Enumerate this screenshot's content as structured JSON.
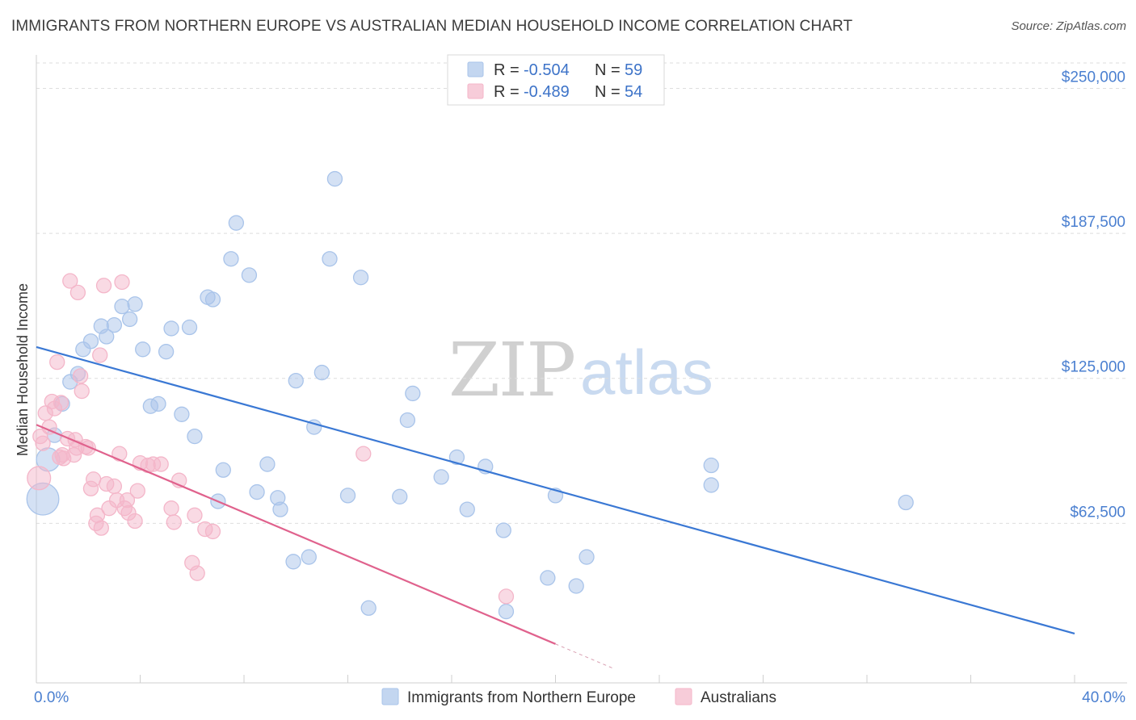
{
  "header": {
    "title": "IMMIGRANTS FROM NORTHERN EUROPE VS AUSTRALIAN MEDIAN HOUSEHOLD INCOME CORRELATION CHART",
    "source": "Source: ZipAtlas.com"
  },
  "watermark": {
    "zip": "ZIP",
    "atlas": "atlas"
  },
  "legend_top": {
    "rows": [
      {
        "r_label": "R =",
        "r_value": "-0.504",
        "n_label": "N =",
        "n_value": "59",
        "color": "#a9c4ea"
      },
      {
        "r_label": "R =",
        "r_value": "-0.489",
        "n_label": "N =",
        "n_value": "54",
        "color": "#f4b6c9"
      }
    ]
  },
  "legend_bottom": {
    "items": [
      {
        "label": "Immigrants from Northern Europe",
        "color": "#a9c4ea"
      },
      {
        "label": "Australians",
        "color": "#f4b6c9"
      }
    ]
  },
  "chart_data": {
    "type": "scatter",
    "title": "IMMIGRANTS FROM NORTHERN EUROPE VS AUSTRALIAN MEDIAN HOUSEHOLD INCOME CORRELATION CHART",
    "xlabel": "",
    "ylabel": "Median Household Income",
    "xlim": [
      0,
      40
    ],
    "ylim": [
      0,
      262000
    ],
    "x_tick_labels": [
      "0.0%",
      "40.0%"
    ],
    "y_ticks": [
      62500,
      125000,
      187500,
      250000
    ],
    "y_tick_labels": [
      "$62,500",
      "$125,000",
      "$187,500",
      "$250,000"
    ],
    "grid": true,
    "series": [
      {
        "name": "Immigrants from Northern Europe",
        "color": "#3a78d4",
        "fill": "#a9c4ea",
        "trend": {
          "x": [
            0,
            40
          ],
          "y": [
            138500,
            15000
          ]
        },
        "points": [
          [
            0.25,
            73000,
            2.2
          ],
          [
            0.45,
            90000,
            1.6
          ],
          [
            0.7,
            100500,
            1
          ],
          [
            1.0,
            114000,
            1
          ],
          [
            1.3,
            123500,
            1
          ],
          [
            1.6,
            127000,
            1
          ],
          [
            1.8,
            137500,
            1
          ],
          [
            2.1,
            141000,
            1
          ],
          [
            2.5,
            147500,
            1
          ],
          [
            2.7,
            143000,
            1
          ],
          [
            3.0,
            148000,
            1
          ],
          [
            3.3,
            156000,
            1
          ],
          [
            3.6,
            150500,
            1
          ],
          [
            3.8,
            157000,
            1
          ],
          [
            4.1,
            137500,
            1
          ],
          [
            4.4,
            113000,
            1
          ],
          [
            4.7,
            114000,
            1
          ],
          [
            5.0,
            136500,
            1
          ],
          [
            5.2,
            146500,
            1
          ],
          [
            5.6,
            109500,
            1
          ],
          [
            5.9,
            147000,
            1
          ],
          [
            6.1,
            100000,
            1
          ],
          [
            6.6,
            160000,
            1
          ],
          [
            6.8,
            159000,
            1
          ],
          [
            7.0,
            72000,
            1
          ],
          [
            7.2,
            85500,
            1
          ],
          [
            7.5,
            176500,
            1
          ],
          [
            7.7,
            192000,
            1
          ],
          [
            8.2,
            169500,
            1
          ],
          [
            8.9,
            88000,
            1
          ],
          [
            8.5,
            76000,
            1
          ],
          [
            9.3,
            73500,
            1
          ],
          [
            9.4,
            68500,
            1
          ],
          [
            9.9,
            46000,
            1
          ],
          [
            10.0,
            124000,
            1
          ],
          [
            10.5,
            48000,
            1
          ],
          [
            10.7,
            104000,
            1
          ],
          [
            11.0,
            127500,
            1
          ],
          [
            11.3,
            176500,
            1
          ],
          [
            11.5,
            211000,
            1
          ],
          [
            12.0,
            74500,
            1
          ],
          [
            12.5,
            168500,
            1
          ],
          [
            12.8,
            26000,
            1
          ],
          [
            14.0,
            74000,
            1
          ],
          [
            14.5,
            118500,
            1
          ],
          [
            14.3,
            107000,
            1
          ],
          [
            15.6,
            82500,
            1
          ],
          [
            16.2,
            91000,
            1
          ],
          [
            16.6,
            68500,
            1
          ],
          [
            17.3,
            87000,
            1
          ],
          [
            18.0,
            59500,
            1
          ],
          [
            18.1,
            24500,
            1
          ],
          [
            19.7,
            39000,
            1
          ],
          [
            20.0,
            74500,
            1
          ],
          [
            20.8,
            35500,
            1
          ],
          [
            21.2,
            48000,
            1
          ],
          [
            26.0,
            87500,
            1
          ],
          [
            26.0,
            79000,
            1
          ],
          [
            33.5,
            71500,
            1
          ]
        ]
      },
      {
        "name": "Australians",
        "color": "#e0628d",
        "fill": "#f4b6c9",
        "trend": {
          "x": [
            0,
            20
          ],
          "y": [
            105000,
            10500
          ]
        },
        "points": [
          [
            0.1,
            82000,
            1.6
          ],
          [
            0.25,
            97000,
            1
          ],
          [
            0.35,
            110000,
            1
          ],
          [
            0.5,
            104000,
            1
          ],
          [
            0.6,
            115000,
            1
          ],
          [
            0.7,
            112000,
            1
          ],
          [
            0.8,
            132000,
            1
          ],
          [
            0.9,
            91000,
            1
          ],
          [
            0.95,
            114500,
            1
          ],
          [
            1.0,
            92000,
            1
          ],
          [
            1.2,
            99000,
            1
          ],
          [
            1.3,
            167000,
            1
          ],
          [
            1.45,
            92000,
            1
          ],
          [
            1.5,
            98500,
            1
          ],
          [
            1.6,
            162000,
            1
          ],
          [
            1.7,
            126000,
            1
          ],
          [
            1.75,
            119500,
            1
          ],
          [
            1.9,
            95500,
            1
          ],
          [
            2.0,
            95000,
            1
          ],
          [
            2.1,
            77500,
            1
          ],
          [
            2.2,
            81500,
            1
          ],
          [
            2.3,
            62500,
            1
          ],
          [
            2.35,
            66000,
            1
          ],
          [
            2.5,
            60500,
            1
          ],
          [
            2.45,
            135000,
            1
          ],
          [
            2.6,
            165000,
            1
          ],
          [
            2.7,
            79500,
            1
          ],
          [
            2.8,
            69000,
            1
          ],
          [
            3.0,
            78500,
            1
          ],
          [
            3.1,
            72500,
            1
          ],
          [
            3.2,
            92500,
            1
          ],
          [
            3.3,
            166500,
            1
          ],
          [
            3.4,
            69000,
            1
          ],
          [
            3.5,
            72500,
            1
          ],
          [
            3.55,
            67000,
            1
          ],
          [
            3.8,
            63500,
            1
          ],
          [
            3.9,
            76500,
            1
          ],
          [
            4.0,
            88500,
            1
          ],
          [
            4.3,
            87500,
            1
          ],
          [
            4.5,
            88000,
            1
          ],
          [
            4.8,
            88000,
            1
          ],
          [
            5.2,
            69000,
            1
          ],
          [
            5.3,
            63000,
            1
          ],
          [
            5.5,
            81000,
            1
          ],
          [
            6.0,
            45500,
            1
          ],
          [
            6.1,
            66000,
            1
          ],
          [
            6.2,
            41000,
            1
          ],
          [
            6.5,
            60000,
            1
          ],
          [
            6.8,
            59000,
            1
          ],
          [
            12.6,
            92500,
            1
          ],
          [
            18.1,
            31000,
            1
          ],
          [
            0.15,
            100000,
            1
          ],
          [
            1.05,
            90500,
            1
          ],
          [
            1.55,
            95000,
            1
          ]
        ]
      }
    ]
  }
}
